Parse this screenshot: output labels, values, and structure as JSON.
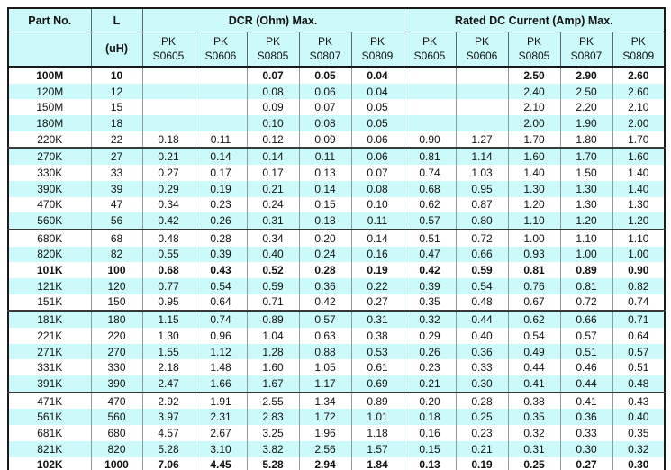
{
  "colors": {
    "header_bg": "#ccfafa",
    "row_alt_bg": "#ccfafa",
    "grid": "#8a9e9e",
    "border_dark": "#1a1a1a",
    "group_line": "#3a3a3a"
  },
  "header": {
    "part_no": "Part No.",
    "l_label": "L",
    "l_unit": "(uH)",
    "dcr_label": "DCR (Ohm) Max.",
    "rated_label": "Rated DC Current (Amp) Max.",
    "pk_line1": "PK",
    "dcr_subcols": [
      "S0605",
      "S0606",
      "S0805",
      "S0807",
      "S0809"
    ],
    "rated_subcols": [
      "S0605",
      "S0606",
      "S0805",
      "S0807",
      "S0809"
    ]
  },
  "rows": [
    {
      "part": "100M",
      "l": "10",
      "bold": true,
      "dcr": [
        "",
        "",
        "0.07",
        "0.05",
        "0.04"
      ],
      "rated": [
        "",
        "",
        "2.50",
        "2.90",
        "2.60"
      ]
    },
    {
      "part": "120M",
      "l": "12",
      "bold": false,
      "dcr": [
        "",
        "",
        "0.08",
        "0.06",
        "0.04"
      ],
      "rated": [
        "",
        "",
        "2.40",
        "2.50",
        "2.60"
      ]
    },
    {
      "part": "150M",
      "l": "15",
      "bold": false,
      "dcr": [
        "",
        "",
        "0.09",
        "0.07",
        "0.05"
      ],
      "rated": [
        "",
        "",
        "2.10",
        "2.20",
        "2.10"
      ]
    },
    {
      "part": "180M",
      "l": "18",
      "bold": false,
      "dcr": [
        "",
        "",
        "0.10",
        "0.08",
        "0.05"
      ],
      "rated": [
        "",
        "",
        "2.00",
        "1.90",
        "2.00"
      ]
    },
    {
      "part": "220K",
      "l": "22",
      "bold": false,
      "dcr": [
        "0.18",
        "0.11",
        "0.12",
        "0.09",
        "0.06"
      ],
      "rated": [
        "0.90",
        "1.27",
        "1.70",
        "1.80",
        "1.70"
      ]
    },
    {
      "part": "270K",
      "l": "27",
      "bold": false,
      "dcr": [
        "0.21",
        "0.14",
        "0.14",
        "0.11",
        "0.06"
      ],
      "rated": [
        "0.81",
        "1.14",
        "1.60",
        "1.70",
        "1.60"
      ]
    },
    {
      "part": "330K",
      "l": "33",
      "bold": false,
      "dcr": [
        "0.27",
        "0.17",
        "0.17",
        "0.13",
        "0.07"
      ],
      "rated": [
        "0.74",
        "1.03",
        "1.40",
        "1.50",
        "1.40"
      ]
    },
    {
      "part": "390K",
      "l": "39",
      "bold": false,
      "dcr": [
        "0.29",
        "0.19",
        "0.21",
        "0.14",
        "0.08"
      ],
      "rated": [
        "0.68",
        "0.95",
        "1.30",
        "1.30",
        "1.40"
      ]
    },
    {
      "part": "470K",
      "l": "47",
      "bold": false,
      "dcr": [
        "0.34",
        "0.23",
        "0.24",
        "0.15",
        "0.10"
      ],
      "rated": [
        "0.62",
        "0.87",
        "1.20",
        "1.30",
        "1.30"
      ]
    },
    {
      "part": "560K",
      "l": "56",
      "bold": false,
      "dcr": [
        "0.42",
        "0.26",
        "0.31",
        "0.18",
        "0.11"
      ],
      "rated": [
        "0.57",
        "0.80",
        "1.10",
        "1.20",
        "1.20"
      ]
    },
    {
      "part": "680K",
      "l": "68",
      "bold": false,
      "dcr": [
        "0.48",
        "0.28",
        "0.34",
        "0.20",
        "0.14"
      ],
      "rated": [
        "0.51",
        "0.72",
        "1.00",
        "1.10",
        "1.10"
      ]
    },
    {
      "part": "820K",
      "l": "82",
      "bold": false,
      "dcr": [
        "0.55",
        "0.39",
        "0.40",
        "0.24",
        "0.16"
      ],
      "rated": [
        "0.47",
        "0.66",
        "0.93",
        "1.00",
        "1.00"
      ]
    },
    {
      "part": "101K",
      "l": "100",
      "bold": true,
      "dcr": [
        "0.68",
        "0.43",
        "0.52",
        "0.28",
        "0.19"
      ],
      "rated": [
        "0.42",
        "0.59",
        "0.81",
        "0.89",
        "0.90"
      ]
    },
    {
      "part": "121K",
      "l": "120",
      "bold": false,
      "dcr": [
        "0.77",
        "0.54",
        "0.59",
        "0.36",
        "0.22"
      ],
      "rated": [
        "0.39",
        "0.54",
        "0.76",
        "0.81",
        "0.82"
      ]
    },
    {
      "part": "151K",
      "l": "150",
      "bold": false,
      "dcr": [
        "0.95",
        "0.64",
        "0.71",
        "0.42",
        "0.27"
      ],
      "rated": [
        "0.35",
        "0.48",
        "0.67",
        "0.72",
        "0.74"
      ]
    },
    {
      "part": "181K",
      "l": "180",
      "bold": false,
      "dcr": [
        "1.15",
        "0.74",
        "0.89",
        "0.57",
        "0.31"
      ],
      "rated": [
        "0.32",
        "0.44",
        "0.62",
        "0.66",
        "0.71"
      ]
    },
    {
      "part": "221K",
      "l": "220",
      "bold": false,
      "dcr": [
        "1.30",
        "0.96",
        "1.04",
        "0.63",
        "0.38"
      ],
      "rated": [
        "0.29",
        "0.40",
        "0.54",
        "0.57",
        "0.64"
      ]
    },
    {
      "part": "271K",
      "l": "270",
      "bold": false,
      "dcr": [
        "1.55",
        "1.12",
        "1.28",
        "0.88",
        "0.53"
      ],
      "rated": [
        "0.26",
        "0.36",
        "0.49",
        "0.51",
        "0.57"
      ]
    },
    {
      "part": "331K",
      "l": "330",
      "bold": false,
      "dcr": [
        "2.18",
        "1.48",
        "1.60",
        "1.05",
        "0.61"
      ],
      "rated": [
        "0.23",
        "0.33",
        "0.44",
        "0.46",
        "0.51"
      ]
    },
    {
      "part": "391K",
      "l": "390",
      "bold": false,
      "dcr": [
        "2.47",
        "1.66",
        "1.67",
        "1.17",
        "0.69"
      ],
      "rated": [
        "0.21",
        "0.30",
        "0.41",
        "0.44",
        "0.48"
      ]
    },
    {
      "part": "471K",
      "l": "470",
      "bold": false,
      "dcr": [
        "2.92",
        "1.91",
        "2.55",
        "1.34",
        "0.89"
      ],
      "rated": [
        "0.20",
        "0.28",
        "0.38",
        "0.41",
        "0.43"
      ]
    },
    {
      "part": "561K",
      "l": "560",
      "bold": false,
      "dcr": [
        "3.97",
        "2.31",
        "2.83",
        "1.72",
        "1.01"
      ],
      "rated": [
        "0.18",
        "0.25",
        "0.35",
        "0.36",
        "0.40"
      ]
    },
    {
      "part": "681K",
      "l": "680",
      "bold": false,
      "dcr": [
        "4.57",
        "2.67",
        "3.25",
        "1.96",
        "1.18"
      ],
      "rated": [
        "0.16",
        "0.23",
        "0.32",
        "0.33",
        "0.35"
      ]
    },
    {
      "part": "821K",
      "l": "820",
      "bold": false,
      "dcr": [
        "5.28",
        "3.10",
        "3.82",
        "2.56",
        "1.57"
      ],
      "rated": [
        "0.15",
        "0.21",
        "0.31",
        "0.30",
        "0.32"
      ]
    },
    {
      "part": "102K",
      "l": "1000",
      "bold": true,
      "dcr": [
        "7.06",
        "4.45",
        "5.28",
        "2.94",
        "1.84"
      ],
      "rated": [
        "0.13",
        "0.19",
        "0.25",
        "0.27",
        "0.30"
      ]
    }
  ]
}
